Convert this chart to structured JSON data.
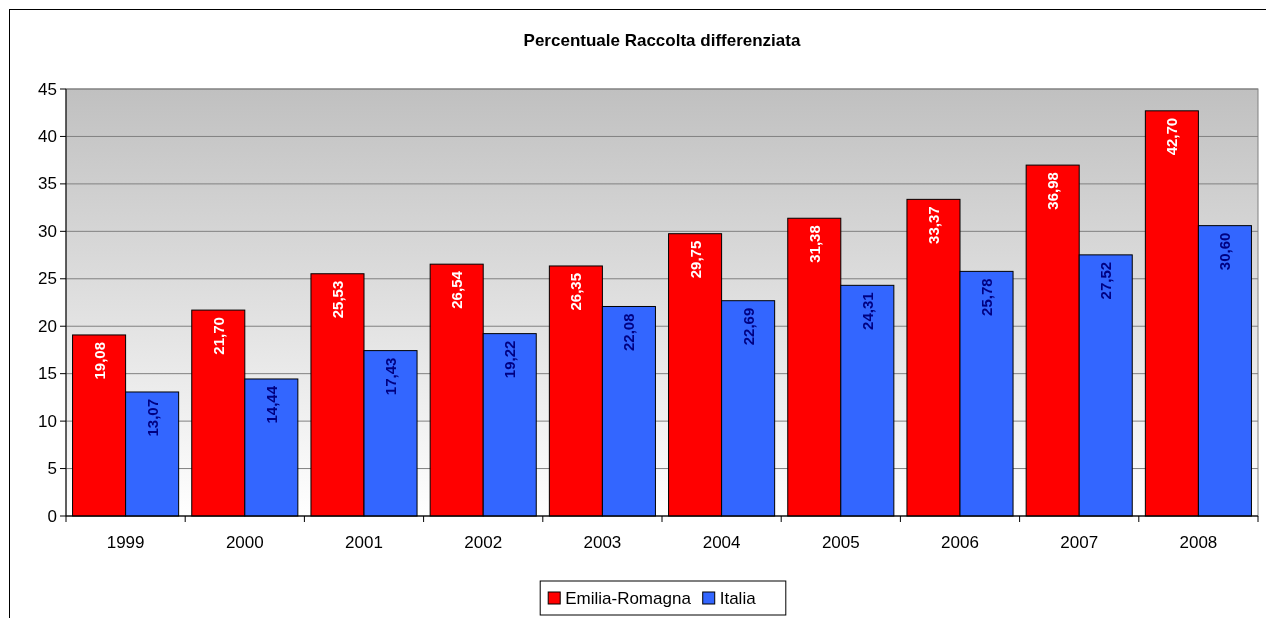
{
  "chart_data": {
    "type": "bar",
    "title": "Percentuale Raccolta differenziata",
    "categories": [
      "1999",
      "2000",
      "2001",
      "2002",
      "2003",
      "2004",
      "2005",
      "2006",
      "2007",
      "2008"
    ],
    "series": [
      {
        "name": "Emilia-Romagna",
        "color": "#ff0000",
        "values": [
          19.08,
          21.7,
          25.53,
          26.54,
          26.35,
          29.75,
          31.38,
          33.37,
          36.98,
          42.7
        ],
        "value_labels": [
          "19,08",
          "21,70",
          "25,53",
          "26,54",
          "26,35",
          "29,75",
          "31,38",
          "33,37",
          "36,98",
          "42,70"
        ]
      },
      {
        "name": "Italia",
        "color": "#3366ff",
        "values": [
          13.07,
          14.44,
          17.43,
          19.22,
          22.08,
          22.69,
          24.31,
          25.78,
          27.52,
          30.6
        ],
        "value_labels": [
          "13,07",
          "14,44",
          "17,43",
          "19,22",
          "22,08",
          "22,69",
          "24,31",
          "25,78",
          "27,52",
          "30,60"
        ]
      }
    ],
    "ylim": [
      0,
      45
    ],
    "yticks": [
      0,
      5,
      10,
      15,
      20,
      25,
      30,
      35,
      40,
      45
    ],
    "grid": "y",
    "legend": "bottom"
  }
}
